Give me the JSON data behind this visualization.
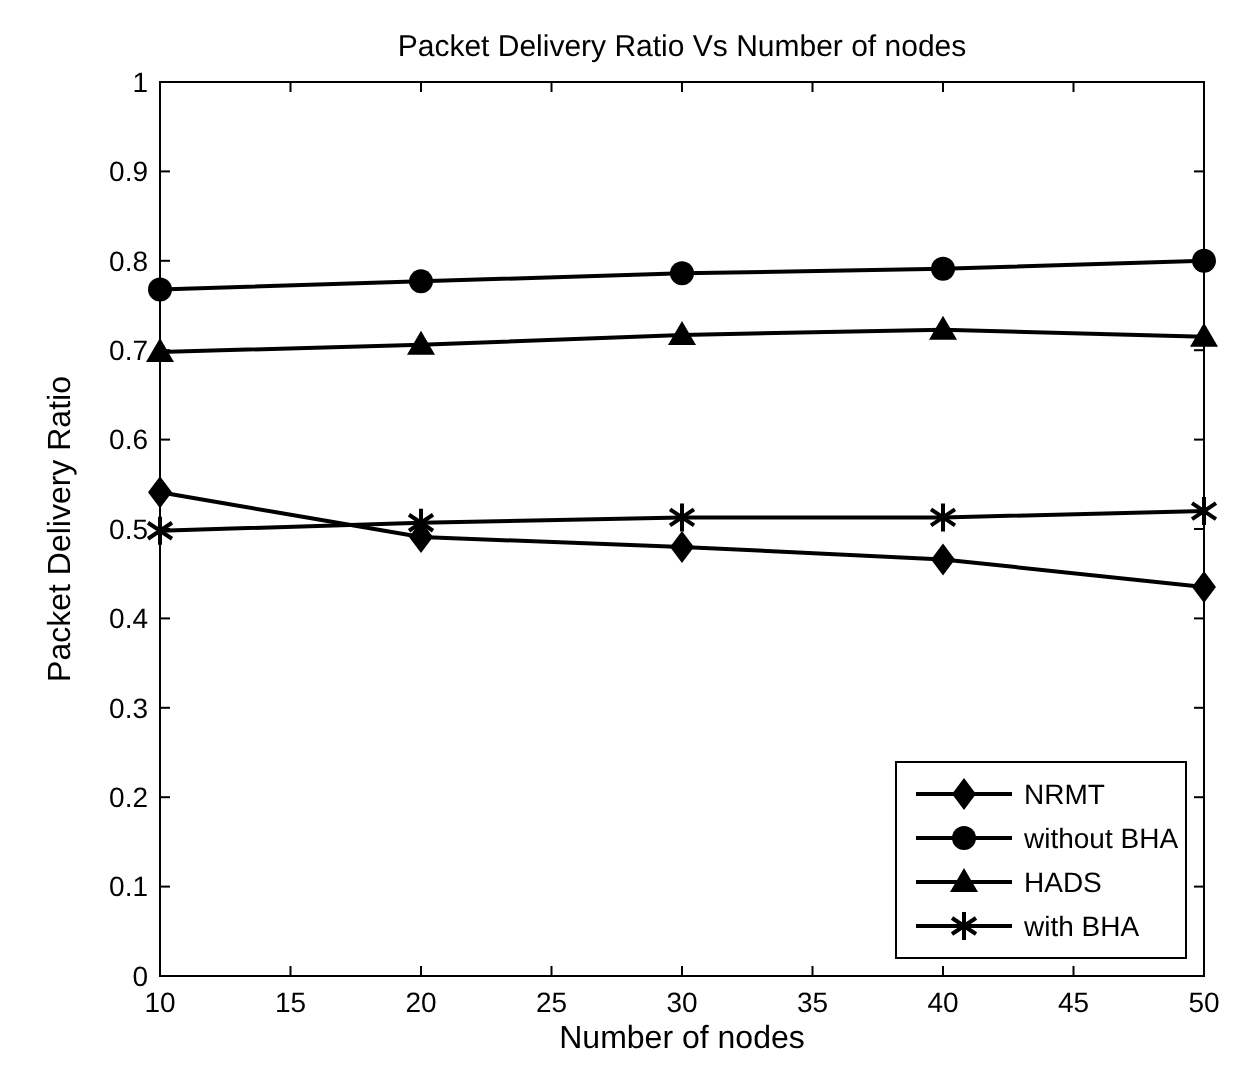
{
  "chart_data": {
    "type": "line",
    "title": "Packet Delivery Ratio Vs Number of nodes",
    "xlabel": "Number of nodes",
    "ylabel": "Packet Delivery Ratio",
    "x": [
      10,
      20,
      30,
      40,
      50
    ],
    "series": [
      {
        "name": "NRMT",
        "color": "#000000",
        "marker": "diamond",
        "values": [
          0.541,
          0.491,
          0.48,
          0.466,
          0.435
        ]
      },
      {
        "name": "without BHA",
        "color": "#000000",
        "marker": "circle",
        "values": [
          0.768,
          0.777,
          0.786,
          0.791,
          0.8
        ]
      },
      {
        "name": "HADS",
        "color": "#000000",
        "marker": "triangle",
        "values": [
          0.698,
          0.706,
          0.717,
          0.723,
          0.715
        ]
      },
      {
        "name": "with BHA",
        "color": "#000000",
        "marker": "cross",
        "values": [
          0.498,
          0.507,
          0.513,
          0.513,
          0.52
        ]
      }
    ],
    "xlim": [
      10,
      50
    ],
    "xticks": [
      10,
      15,
      20,
      25,
      30,
      35,
      40,
      45,
      50
    ],
    "ylim": [
      0,
      1
    ],
    "yticks": [
      0,
      0.1,
      0.2,
      0.3,
      0.4,
      0.5,
      0.6,
      0.7,
      0.8,
      0.9,
      1
    ],
    "grid": false,
    "legend": "bottom right"
  }
}
